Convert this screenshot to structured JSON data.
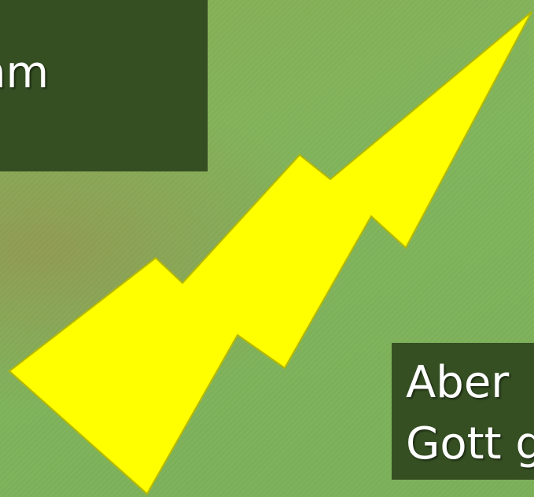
{
  "slide": {
    "top_box_text": "nm",
    "bottom_box_line1": "Aber",
    "bottom_box_line2": "Gott g"
  },
  "colors": {
    "background": "#7fb35a",
    "text_box": "#354f22",
    "bolt_fill": "#ffff00",
    "bolt_stroke": "#b5b800"
  },
  "icons": {
    "bolt": "lightning-bolt-icon"
  }
}
